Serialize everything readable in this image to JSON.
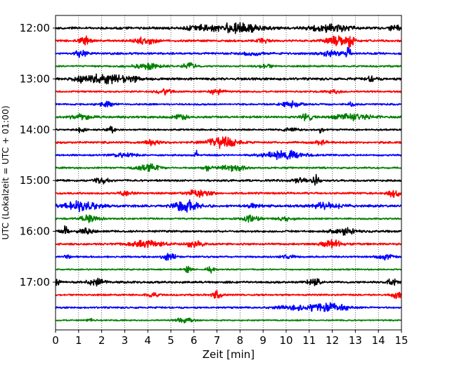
{
  "chart_data": {
    "type": "line",
    "title": "",
    "xlabel": "Zeit  [min]",
    "ylabel": "UTC (Lokalzeit = UTC + 01:00)",
    "xlim": [
      0,
      15
    ],
    "x_ticks": [
      "0",
      "1",
      "2",
      "3",
      "4",
      "5",
      "6",
      "7",
      "8",
      "9",
      "10",
      "11",
      "12",
      "13",
      "14",
      "15"
    ],
    "y_ticks": [
      "12:00",
      "13:00",
      "14:00",
      "15:00",
      "16:00",
      "17:00"
    ],
    "grid": "vertical dotted at each minute",
    "colors": [
      "#000000",
      "#ff0000",
      "#0000ff",
      "#008000"
    ],
    "trace_interval_min": 15,
    "traces": [
      {
        "start": "12:00",
        "color": "#000000",
        "amp": 0.35,
        "events": [
          [
            7.9,
            1.0,
            0.75
          ],
          [
            11.9,
            0.8,
            0.6
          ],
          [
            6.2,
            0.6,
            0.35
          ],
          [
            14.7,
            0.2,
            0.55
          ]
        ]
      },
      {
        "start": "12:15",
        "color": "#ff0000",
        "amp": 0.3,
        "events": [
          [
            1.3,
            0.25,
            0.6
          ],
          [
            3.9,
            0.4,
            0.6
          ],
          [
            12.2,
            0.5,
            0.75
          ],
          [
            12.8,
            0.15,
            0.9
          ],
          [
            9.0,
            0.3,
            0.3
          ]
        ]
      },
      {
        "start": "12:30",
        "color": "#0000ff",
        "amp": 0.3,
        "events": [
          [
            1.1,
            0.25,
            0.55
          ],
          [
            12.7,
            0.1,
            0.9
          ],
          [
            11.9,
            0.5,
            0.4
          ],
          [
            8.5,
            0.5,
            0.25
          ]
        ]
      },
      {
        "start": "12:45",
        "color": "#008000",
        "amp": 0.25,
        "events": [
          [
            3.9,
            0.6,
            0.45
          ],
          [
            5.8,
            0.3,
            0.5
          ],
          [
            9.1,
            0.3,
            0.3
          ]
        ]
      },
      {
        "start": "13:00",
        "color": "#000000",
        "amp": 0.35,
        "events": [
          [
            1.9,
            0.6,
            0.6
          ],
          [
            3.0,
            0.7,
            0.55
          ],
          [
            1.0,
            0.2,
            0.6
          ],
          [
            13.7,
            0.2,
            0.4
          ]
        ]
      },
      {
        "start": "13:15",
        "color": "#ff0000",
        "amp": 0.25,
        "events": [
          [
            4.7,
            0.3,
            0.45
          ],
          [
            7.0,
            0.3,
            0.45
          ],
          [
            12.1,
            0.3,
            0.3
          ]
        ]
      },
      {
        "start": "13:30",
        "color": "#0000ff",
        "amp": 0.25,
        "events": [
          [
            2.2,
            0.3,
            0.4
          ],
          [
            10.2,
            0.4,
            0.5
          ],
          [
            12.8,
            0.2,
            0.3
          ]
        ]
      },
      {
        "start": "13:45",
        "color": "#008000",
        "amp": 0.3,
        "events": [
          [
            1.1,
            0.4,
            0.5
          ],
          [
            5.4,
            0.3,
            0.4
          ],
          [
            10.9,
            0.2,
            0.6
          ],
          [
            12.9,
            0.7,
            0.55
          ]
        ]
      },
      {
        "start": "14:00",
        "color": "#000000",
        "amp": 0.25,
        "events": [
          [
            1.1,
            0.2,
            0.4
          ],
          [
            2.4,
            0.15,
            0.6
          ],
          [
            11.5,
            0.1,
            0.55
          ],
          [
            10.2,
            0.3,
            0.3
          ]
        ]
      },
      {
        "start": "14:15",
        "color": "#ff0000",
        "amp": 0.3,
        "events": [
          [
            7.2,
            0.6,
            0.9
          ],
          [
            4.2,
            0.3,
            0.4
          ],
          [
            11.5,
            0.3,
            0.35
          ]
        ]
      },
      {
        "start": "14:30",
        "color": "#0000ff",
        "amp": 0.25,
        "events": [
          [
            6.1,
            0.05,
            0.9
          ],
          [
            9.9,
            0.8,
            0.75
          ],
          [
            3.0,
            0.5,
            0.3
          ]
        ]
      },
      {
        "start": "14:45",
        "color": "#008000",
        "amp": 0.25,
        "events": [
          [
            4.0,
            0.5,
            0.55
          ],
          [
            6.6,
            0.2,
            0.45
          ],
          [
            7.7,
            0.5,
            0.5
          ]
        ]
      },
      {
        "start": "15:00",
        "color": "#000000",
        "amp": 0.3,
        "events": [
          [
            2.0,
            0.3,
            0.5
          ],
          [
            11.3,
            0.15,
            0.85
          ],
          [
            10.6,
            0.3,
            0.4
          ]
        ]
      },
      {
        "start": "15:15",
        "color": "#ff0000",
        "amp": 0.3,
        "events": [
          [
            6.2,
            0.5,
            0.5
          ],
          [
            14.7,
            0.3,
            0.6
          ],
          [
            3.0,
            0.3,
            0.3
          ]
        ]
      },
      {
        "start": "15:30",
        "color": "#0000ff",
        "amp": 0.35,
        "events": [
          [
            1.1,
            0.7,
            0.75
          ],
          [
            5.7,
            0.5,
            1.0
          ],
          [
            11.8,
            0.6,
            0.5
          ],
          [
            8.7,
            0.3,
            0.35
          ]
        ]
      },
      {
        "start": "15:45",
        "color": "#008000",
        "amp": 0.25,
        "events": [
          [
            1.5,
            0.4,
            0.6
          ],
          [
            8.5,
            0.4,
            0.5
          ],
          [
            10.0,
            0.4,
            0.3
          ]
        ]
      },
      {
        "start": "16:00",
        "color": "#000000",
        "amp": 0.3,
        "events": [
          [
            0.4,
            0.15,
            0.75
          ],
          [
            1.3,
            0.3,
            0.55
          ],
          [
            12.5,
            0.5,
            0.5
          ]
        ]
      },
      {
        "start": "16:15",
        "color": "#ff0000",
        "amp": 0.3,
        "events": [
          [
            3.9,
            0.7,
            0.55
          ],
          [
            6.0,
            0.4,
            0.45
          ],
          [
            12.0,
            0.4,
            0.6
          ]
        ]
      },
      {
        "start": "16:30",
        "color": "#0000ff",
        "amp": 0.25,
        "events": [
          [
            0.5,
            0.1,
            0.6
          ],
          [
            4.9,
            0.3,
            0.5
          ],
          [
            10.1,
            0.3,
            0.35
          ],
          [
            14.3,
            0.3,
            0.4
          ]
        ]
      },
      {
        "start": "16:45",
        "color": "#008000",
        "amp": 0.2,
        "events": [
          [
            5.7,
            0.2,
            0.5
          ],
          [
            6.7,
            0.15,
            0.6
          ]
        ]
      },
      {
        "start": "17:00",
        "color": "#000000",
        "amp": 0.3,
        "events": [
          [
            0.1,
            0.1,
            0.7
          ],
          [
            1.8,
            0.4,
            0.5
          ],
          [
            11.2,
            0.3,
            0.5
          ],
          [
            14.6,
            0.2,
            0.6
          ]
        ]
      },
      {
        "start": "17:15",
        "color": "#ff0000",
        "amp": 0.25,
        "events": [
          [
            7.0,
            0.2,
            0.65
          ],
          [
            14.8,
            0.2,
            0.6
          ],
          [
            4.2,
            0.3,
            0.3
          ]
        ]
      },
      {
        "start": "17:30",
        "color": "#0000ff",
        "amp": 0.25,
        "events": [
          [
            10.7,
            1.0,
            0.4
          ],
          [
            12.0,
            0.7,
            0.55
          ]
        ]
      },
      {
        "start": "17:45",
        "color": "#008000",
        "amp": 0.2,
        "events": [
          [
            1.5,
            0.1,
            0.5
          ],
          [
            5.6,
            0.3,
            0.55
          ]
        ]
      }
    ]
  }
}
